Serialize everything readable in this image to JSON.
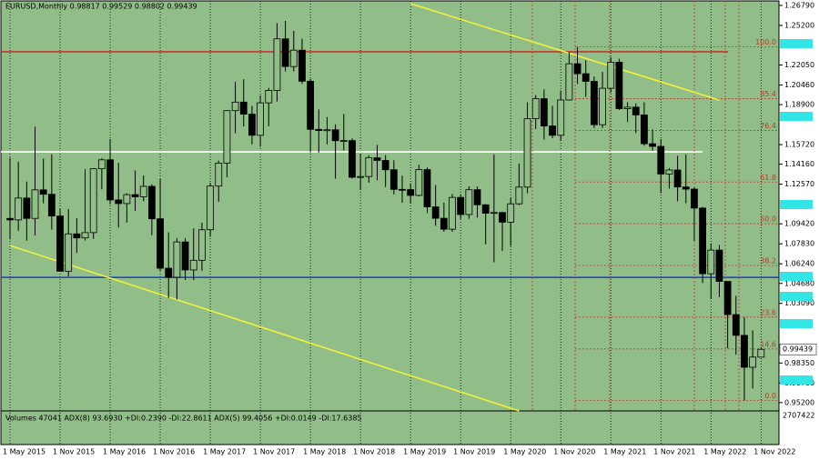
{
  "chart_data": {
    "type": "candlestick",
    "title": "EURUSD,Monthly  0.98817 0.99529 0.98802 0.99439",
    "background": "#90bd88",
    "up_color": "#90bd88",
    "down_color": "#000000",
    "categories": [
      "1 May 2015",
      null,
      null,
      null,
      null,
      null,
      "1 Nov 2015",
      null,
      null,
      null,
      null,
      null,
      "1 May 2016",
      null,
      null,
      null,
      null,
      null,
      "1 Nov 2016",
      null,
      null,
      null,
      null,
      null,
      "1 May 2017",
      null,
      null,
      null,
      null,
      null,
      "1 Nov 2017",
      null,
      null,
      null,
      null,
      null,
      "1 May 2018",
      null,
      null,
      null,
      null,
      null,
      "1 Nov 2018",
      null,
      null,
      null,
      null,
      null,
      "1 May 2019",
      null,
      null,
      null,
      null,
      null,
      "1 Nov 2019",
      null,
      null,
      null,
      null,
      null,
      "1 May 2020",
      null,
      null,
      null,
      null,
      null,
      "1 Nov 2020",
      null,
      null,
      null,
      null,
      null,
      "1 May 2021",
      null,
      null,
      null,
      null,
      null,
      "1 Nov 2021",
      null,
      null,
      null,
      null,
      null,
      "1 May 2022",
      null,
      null,
      null,
      null,
      null,
      "1 Nov 2022"
    ],
    "open": [
      1.0985,
      1.0973,
      1.1147,
      1.0985,
      1.1212,
      1.1177,
      1.1004,
      1.0565,
      1.0862,
      1.083,
      1.0872,
      1.138,
      1.1451,
      1.1132,
      1.1103,
      1.1174,
      1.1157,
      1.124,
      1.0982,
      1.0589,
      1.0517,
      1.0798,
      1.0575,
      1.0652,
      1.0895,
      1.1242,
      1.1425,
      1.1842,
      1.191,
      1.1814,
      1.1646,
      1.1904,
      1.2003,
      1.2413,
      1.2193,
      1.2323,
      1.2076,
      1.1693,
      1.1684,
      1.169,
      1.1603,
      1.1604,
      1.1312,
      1.1318,
      1.1467,
      1.1446,
      1.1372,
      1.1216,
      1.1214,
      1.1168,
      1.1373,
      1.1077,
      1.0986,
      1.0899,
      1.1152,
      1.1016,
      1.1213,
      1.1093,
      1.1026,
      1.1032,
      1.0955,
      1.1101,
      1.1234,
      1.1778,
      1.1937,
      1.172,
      1.1646,
      1.1927,
      1.2215,
      1.2136,
      1.2075,
      1.173,
      1.202,
      1.2227,
      1.1858,
      1.187,
      1.1808,
      1.1579,
      1.1558,
      1.1338,
      1.137,
      1.1235,
      1.1218,
      1.1067,
      1.0545,
      1.0733,
      1.0484,
      1.022,
      1.0055,
      0.9801,
      0.98817
    ],
    "high": [
      1.1467,
      1.1436,
      1.1278,
      1.1714,
      1.146,
      1.1495,
      1.106,
      1.106,
      1.0986,
      1.1376,
      1.1385,
      1.1464,
      1.1616,
      1.1428,
      1.1186,
      1.1366,
      1.1327,
      1.1257,
      1.13,
      1.0874,
      1.0829,
      1.0829,
      1.0906,
      1.0951,
      1.1268,
      1.1445,
      1.1846,
      1.207,
      1.2092,
      1.188,
      1.1962,
      1.2023,
      1.2537,
      1.2556,
      1.2476,
      1.2414,
      1.2095,
      1.1852,
      1.1791,
      1.1733,
      1.1815,
      1.1621,
      1.15,
      1.1487,
      1.157,
      1.1489,
      1.1448,
      1.1324,
      1.1264,
      1.1412,
      1.139,
      1.125,
      1.111,
      1.1179,
      1.1176,
      1.124,
      1.1239,
      1.1099,
      1.1495,
      1.1037,
      1.1147,
      1.1422,
      1.1909,
      1.1966,
      1.2011,
      1.1881,
      1.2003,
      1.231,
      1.2349,
      1.2243,
      1.2113,
      1.215,
      1.2266,
      1.2254,
      1.1909,
      1.19,
      1.1909,
      1.1692,
      1.1616,
      1.1386,
      1.1483,
      1.1495,
      1.1233,
      1.1076,
      1.0786,
      1.0773,
      1.0487,
      1.0369,
      1.0198,
      1.0094,
      0.99529
    ],
    "low": [
      1.0819,
      1.0887,
      1.0808,
      1.085,
      1.1105,
      1.0896,
      1.0565,
      1.0524,
      1.071,
      1.081,
      1.0822,
      1.1216,
      1.1098,
      1.0912,
      1.0952,
      1.1045,
      1.1122,
      1.0852,
      1.0569,
      1.0352,
      1.034,
      1.0494,
      1.0494,
      1.0569,
      1.0839,
      1.1118,
      1.1312,
      1.1662,
      1.1717,
      1.1574,
      1.1554,
      1.1718,
      1.1915,
      1.2153,
      1.2155,
      1.2055,
      1.151,
      1.1508,
      1.1574,
      1.1301,
      1.1526,
      1.1302,
      1.1215,
      1.1269,
      1.1289,
      1.1234,
      1.1176,
      1.111,
      1.1107,
      1.116,
      1.1027,
      1.0926,
      1.0879,
      1.0879,
      1.0981,
      1.0982,
      1.0992,
      1.0778,
      1.0636,
      1.0727,
      1.0767,
      1.1091,
      1.1185,
      1.1696,
      1.1612,
      1.1622,
      1.1603,
      1.1922,
      1.2054,
      1.1952,
      1.1704,
      1.1704,
      1.1986,
      1.1847,
      1.1752,
      1.1664,
      1.1563,
      1.1524,
      1.1186,
      1.1222,
      1.1121,
      1.1106,
      1.0806,
      1.0471,
      1.0349,
      1.0359,
      0.9952,
      0.9901,
      0.9536,
      0.9632,
      0.98802
    ],
    "close": [
      1.0973,
      1.1147,
      1.0985,
      1.1212,
      1.1177,
      1.1004,
      1.0565,
      1.0862,
      1.083,
      1.0872,
      1.138,
      1.1451,
      1.1132,
      1.1103,
      1.1174,
      1.1157,
      1.124,
      1.0982,
      1.0589,
      1.0517,
      1.0798,
      1.0575,
      1.0652,
      1.0895,
      1.1242,
      1.1425,
      1.1842,
      1.191,
      1.1814,
      1.1646,
      1.1904,
      1.2003,
      1.2413,
      1.2193,
      1.2323,
      1.2076,
      1.1693,
      1.1684,
      1.169,
      1.1603,
      1.1604,
      1.1312,
      1.1318,
      1.1467,
      1.1446,
      1.1372,
      1.1216,
      1.1214,
      1.1168,
      1.1373,
      1.1077,
      1.0986,
      1.0899,
      1.1152,
      1.1016,
      1.1213,
      1.1093,
      1.1026,
      1.1032,
      1.0955,
      1.1101,
      1.1234,
      1.1778,
      1.1937,
      1.172,
      1.1646,
      1.1927,
      1.2215,
      1.2136,
      1.2075,
      1.173,
      1.202,
      1.2227,
      1.1858,
      1.187,
      1.1808,
      1.1579,
      1.1558,
      1.1338,
      1.137,
      1.1235,
      1.1218,
      1.1067,
      1.0545,
      1.0733,
      1.0484,
      1.022,
      1.0055,
      0.9801,
      0.9882,
      0.99439
    ],
    "ylim": [
      0.9454,
      1.2722
    ],
    "yticks": [
      {
        "value": 1.2679,
        "label": "1.26790"
      },
      {
        "value": 1.252,
        "label": "1.25200"
      },
      {
        "value": 1.2205,
        "label": "1.22050"
      },
      {
        "value": 1.2046,
        "label": "1.20460"
      },
      {
        "value": 1.189,
        "label": "1.18900"
      },
      {
        "value": 1.1572,
        "label": "1.15720"
      },
      {
        "value": 1.1416,
        "label": "1.14160"
      },
      {
        "value": 1.1257,
        "label": "1.12570"
      },
      {
        "value": 1.0942,
        "label": "1.09420"
      },
      {
        "value": 1.0783,
        "label": "1.07830"
      },
      {
        "value": 1.0624,
        "label": "1.06240"
      },
      {
        "value": 1.0468,
        "label": "1.04680"
      },
      {
        "value": 1.0309,
        "label": "1.03090"
      },
      {
        "value": 0.9835,
        "label": "0.98350"
      },
      {
        "value": 0.9676,
        "label": "0.96760"
      },
      {
        "value": 0.952,
        "label": "0.95200"
      }
    ],
    "last_price": 0.99439,
    "horizontal_lines": [
      {
        "value": 1.231,
        "color": "#c0392b"
      },
      {
        "value": 1.1514,
        "color": "#ffffff"
      },
      {
        "value": 1.0516,
        "color": "#1f3fbf"
      }
    ],
    "fibonacci": [
      {
        "label": "100.0",
        "price": 1.2349
      },
      {
        "label": "85.4",
        "price": 1.1938
      },
      {
        "label": "76.4",
        "price": 1.1685
      },
      {
        "label": "61.8",
        "price": 1.1274
      },
      {
        "label": "50.0",
        "price": 1.0943
      },
      {
        "label": "38.2",
        "price": 1.0611
      },
      {
        "label": "23.6",
        "price": 1.02
      },
      {
        "label": "14.6",
        "price": 0.9947
      },
      {
        "label": "0.0",
        "price": 0.9536
      }
    ],
    "trendlines": [
      {
        "color": "#f2f23a",
        "points": [
          [
            48,
            1.2693
          ],
          [
            85,
            1.1926
          ]
        ]
      },
      {
        "color": "#f2f23a",
        "points": [
          [
            0,
            1.0769
          ],
          [
            61,
            0.9454
          ]
        ]
      }
    ],
    "indicator_label": "Volumes 47041  ADX(8) 93.6930 +DI:0.2390 -DI:22.8611  ADX(5) 99.4056 +DI:0.0149 -DI:17.6385",
    "volume_max": 2707422
  }
}
